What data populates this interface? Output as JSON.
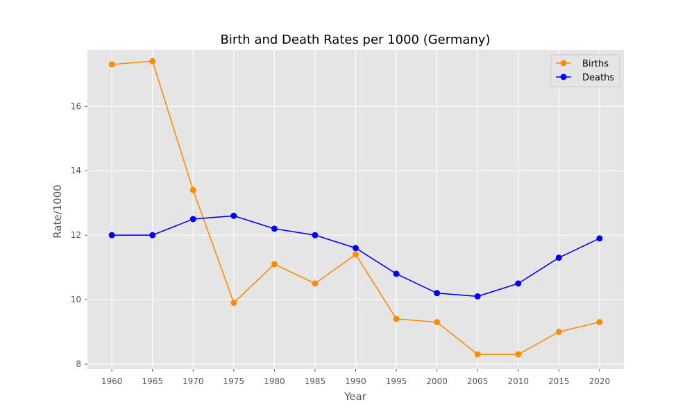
{
  "chart_data": {
    "type": "line",
    "title": "Birth and Death Rates per 1000 (Germany)",
    "xlabel": "Year",
    "ylabel": "Rate/1000",
    "x": [
      1960,
      1965,
      1970,
      1975,
      1980,
      1985,
      1990,
      1995,
      2000,
      2005,
      2010,
      2015,
      2020
    ],
    "xlim": [
      1957,
      2023
    ],
    "ylim": [
      7.85,
      17.75
    ],
    "yticks": [
      8,
      10,
      12,
      14,
      16
    ],
    "grid": true,
    "legend_position": "top-right",
    "series": [
      {
        "name": "Births",
        "color": "#ff8c00",
        "marker": "circle",
        "values": [
          17.3,
          17.4,
          13.4,
          9.9,
          11.1,
          10.5,
          11.4,
          9.4,
          9.3,
          8.3,
          8.3,
          9.0,
          9.3
        ]
      },
      {
        "name": "Deaths",
        "color": "#0000ff",
        "marker": "circle",
        "values": [
          12.0,
          12.0,
          12.5,
          12.6,
          12.2,
          12.0,
          11.6,
          10.8,
          10.2,
          10.1,
          10.5,
          11.3,
          11.9
        ]
      }
    ],
    "colors": {
      "plot_background": "#e5e5e5",
      "grid": "#ffffff",
      "tick_text": "#555555"
    }
  }
}
